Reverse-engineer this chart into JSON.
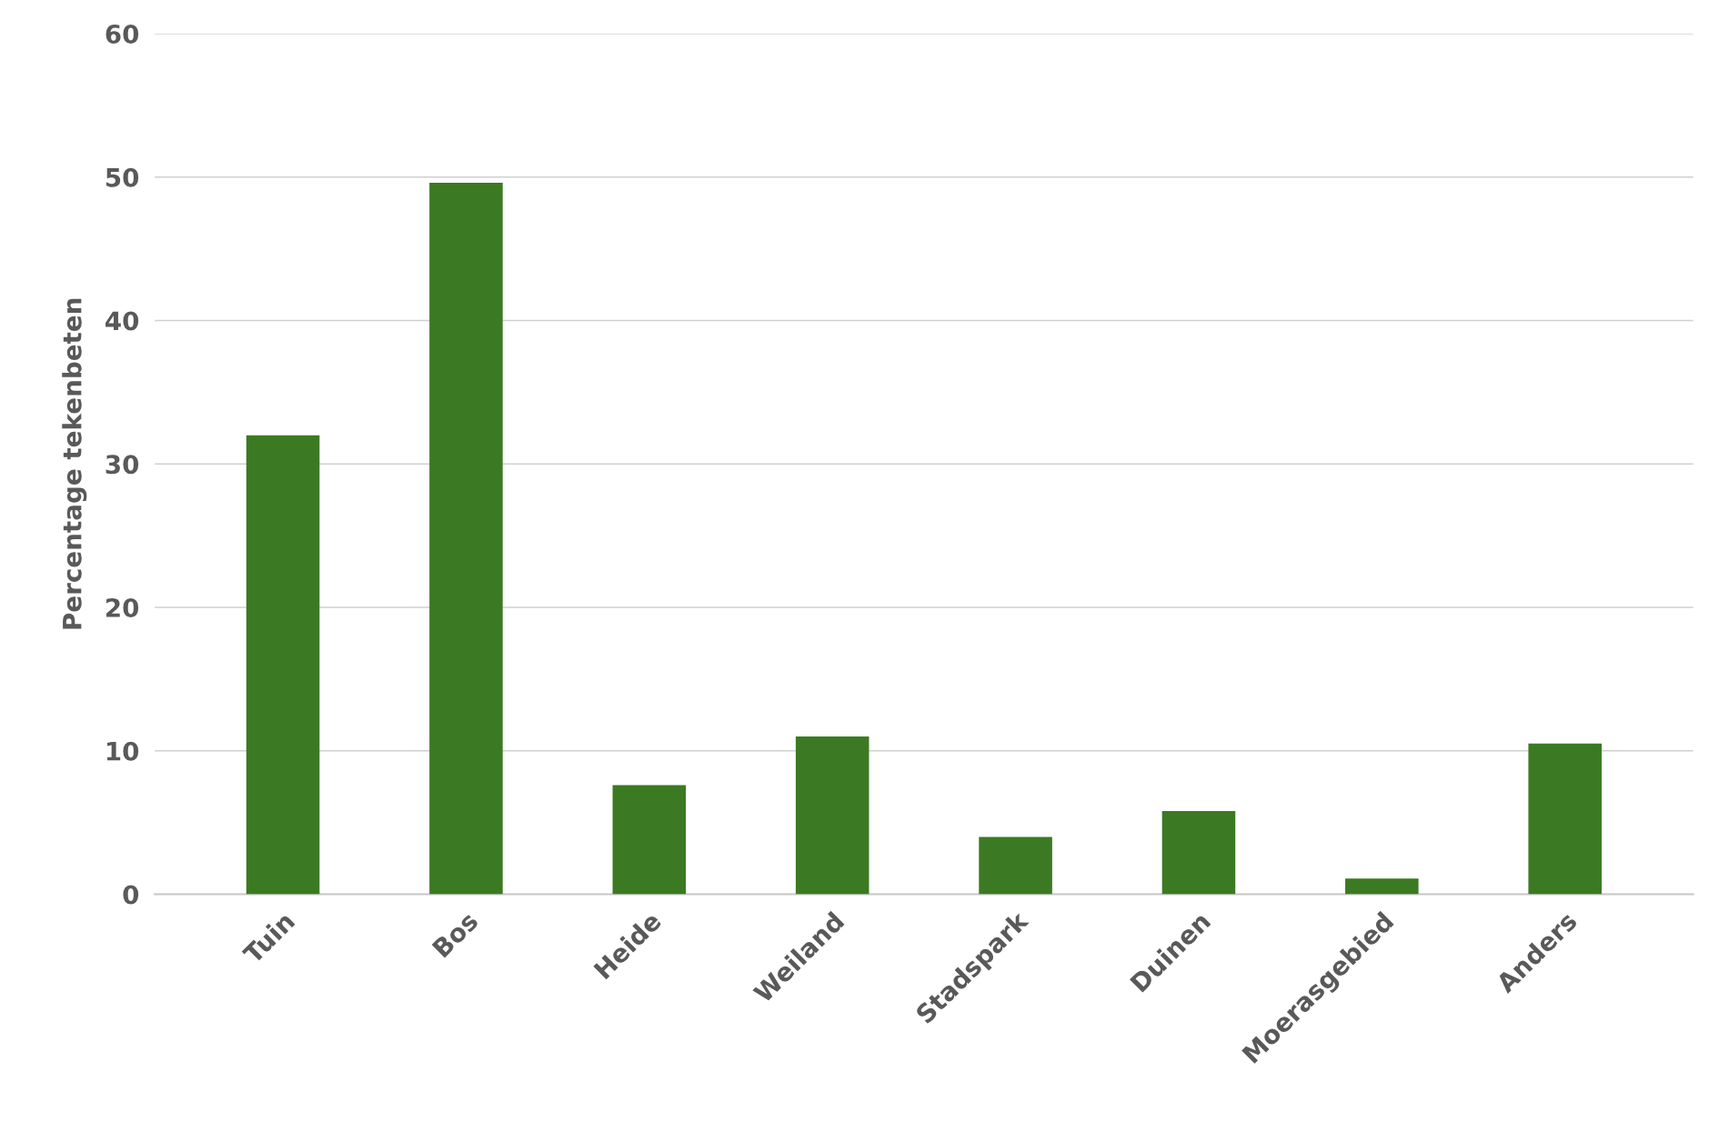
{
  "chart_data": {
    "type": "bar",
    "ylabel": "Percentage tekenbeten",
    "categories": [
      "Tuin",
      "Bos",
      "Heide",
      "Weiland",
      "Stadspark",
      "Duinen",
      "Moerasgebied",
      "Anders"
    ],
    "values": [
      32.0,
      49.6,
      7.6,
      11.0,
      4.0,
      5.8,
      1.1,
      10.5
    ],
    "color": "#3b7a22",
    "ylim": [
      0,
      60
    ],
    "yticks": [
      0,
      10,
      20,
      30,
      40,
      50,
      60
    ],
    "grid": "y",
    "legend": false
  }
}
